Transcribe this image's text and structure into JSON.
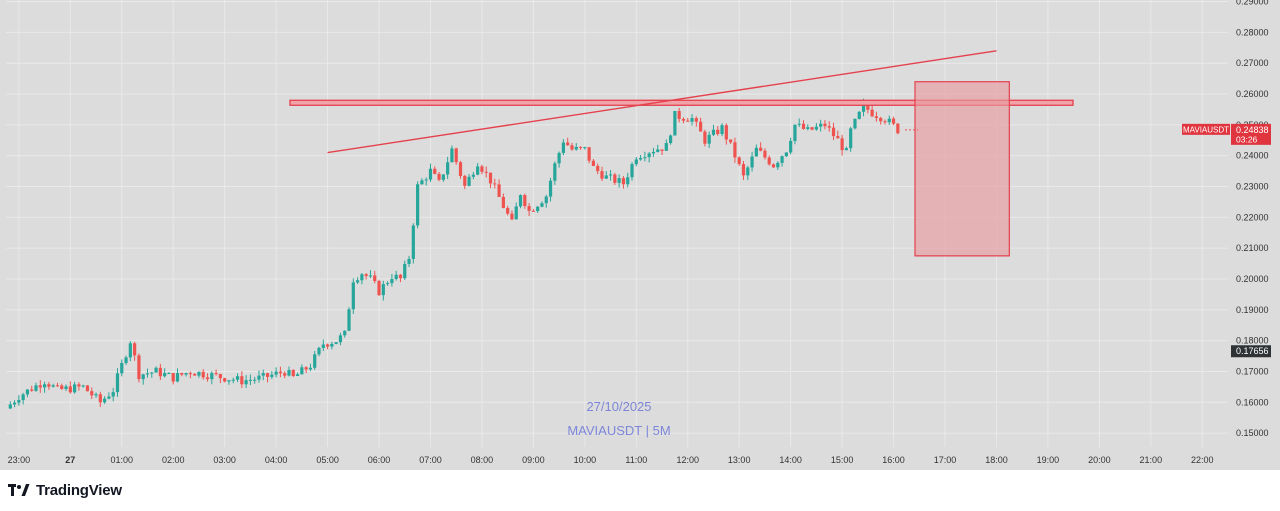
{
  "brand": {
    "name": "TradingView"
  },
  "watermark": {
    "date": "27/10/2025",
    "symbol_interval": "MAVIAUSDT | 5M"
  },
  "colors": {
    "up": "#26a69a",
    "down": "#ef5350",
    "line": "#e5404c",
    "zone_fill": "#e89aa0",
    "background": "#dcdcdc",
    "grid": "#e9e9e9"
  },
  "badges": {
    "symbol": "MAVIAUSDT",
    "price": "0.24838",
    "countdown": "03:26",
    "low_price": "0.17656"
  },
  "chart_data": {
    "type": "candlestick",
    "symbol": "MAVIAUSDT",
    "interval": "5M",
    "date": "27/10/2025",
    "y_ticks": [
      "0.29000",
      "0.28000",
      "0.27000",
      "0.26000",
      "0.25000",
      "0.24000",
      "0.23000",
      "0.22000",
      "0.21000",
      "0.20000",
      "0.19000",
      "0.18000",
      "0.17000",
      "0.16000",
      "0.15000"
    ],
    "x_ticks": [
      "23:00",
      "27",
      "01:00",
      "02:00",
      "03:00",
      "04:00",
      "05:00",
      "06:00",
      "07:00",
      "08:00",
      "09:00",
      "10:00",
      "11:00",
      "12:00",
      "13:00",
      "14:00",
      "15:00",
      "16:00",
      "17:00",
      "18:00",
      "19:00",
      "20:00",
      "21:00",
      "22:00"
    ],
    "x_range": [
      "22:45",
      "22:30"
    ],
    "ylim": [
      0.1455,
      0.2905
    ],
    "grid": true,
    "price_path": [
      [
        "22:45",
        0.158
      ],
      [
        "23:00",
        0.162
      ],
      [
        "23:30",
        0.167
      ],
      [
        "23:45",
        0.164
      ],
      [
        "00:15",
        0.165
      ],
      [
        "00:35",
        0.16
      ],
      [
        "00:50",
        0.164
      ],
      [
        "01:05",
        0.176
      ],
      [
        "01:10",
        0.18
      ],
      [
        "01:20",
        0.169
      ],
      [
        "01:40",
        0.17
      ],
      [
        "02:00",
        0.168
      ],
      [
        "02:20",
        0.17
      ],
      [
        "02:40",
        0.169
      ],
      [
        "03:00",
        0.168
      ],
      [
        "03:20",
        0.167
      ],
      [
        "03:45",
        0.168
      ],
      [
        "04:10",
        0.17
      ],
      [
        "04:20",
        0.168
      ],
      [
        "04:40",
        0.172
      ],
      [
        "04:55",
        0.179
      ],
      [
        "05:10",
        0.18
      ],
      [
        "05:20",
        0.182
      ],
      [
        "05:30",
        0.2
      ],
      [
        "05:40",
        0.202
      ],
      [
        "05:50",
        0.2
      ],
      [
        "06:00",
        0.196
      ],
      [
        "06:15",
        0.201
      ],
      [
        "06:25",
        0.2
      ],
      [
        "06:35",
        0.207
      ],
      [
        "06:45",
        0.23
      ],
      [
        "07:00",
        0.235
      ],
      [
        "07:10",
        0.231
      ],
      [
        "07:25",
        0.242
      ],
      [
        "07:40",
        0.23
      ],
      [
        "07:55",
        0.238
      ],
      [
        "08:10",
        0.232
      ],
      [
        "08:35",
        0.218
      ],
      [
        "08:45",
        0.228
      ],
      [
        "08:55",
        0.222
      ],
      [
        "09:15",
        0.227
      ],
      [
        "09:25",
        0.237
      ],
      [
        "09:35",
        0.245
      ],
      [
        "09:45",
        0.242
      ],
      [
        "10:00",
        0.242
      ],
      [
        "10:10",
        0.236
      ],
      [
        "10:25",
        0.233
      ],
      [
        "10:45",
        0.231
      ],
      [
        "11:00",
        0.24
      ],
      [
        "11:20",
        0.242
      ],
      [
        "11:35",
        0.243
      ],
      [
        "11:45",
        0.253
      ],
      [
        "12:05",
        0.252
      ],
      [
        "12:20",
        0.245
      ],
      [
        "12:40",
        0.249
      ],
      [
        "12:55",
        0.24
      ],
      [
        "13:05",
        0.233
      ],
      [
        "13:20",
        0.242
      ],
      [
        "13:40",
        0.237
      ],
      [
        "13:55",
        0.242
      ],
      [
        "14:05",
        0.25
      ],
      [
        "14:20",
        0.248
      ],
      [
        "14:40",
        0.25
      ],
      [
        "14:55",
        0.245
      ],
      [
        "15:05",
        0.241
      ],
      [
        "15:10",
        0.248
      ],
      [
        "15:25",
        0.256
      ],
      [
        "15:35",
        0.254
      ],
      [
        "15:50",
        0.252
      ],
      [
        "16:05",
        0.2484
      ]
    ],
    "horizontal_level": 0.257,
    "trendline": [
      [
        "05:00",
        0.241
      ],
      [
        "18:00",
        0.274
      ]
    ],
    "zone": {
      "from": "16:25",
      "to": "18:15",
      "high": 0.264,
      "low": 0.2075
    }
  }
}
